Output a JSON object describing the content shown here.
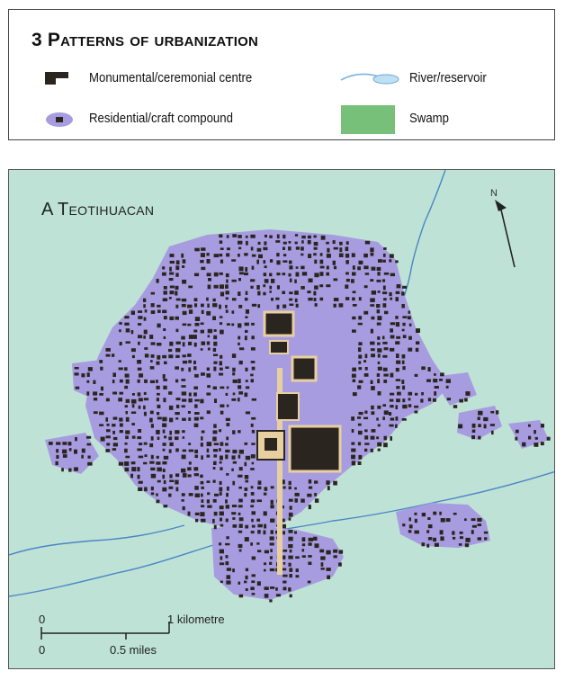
{
  "legend": {
    "title": "3 Patterns of urbanization",
    "items": [
      {
        "label": "Monumental/ceremonial centre",
        "icon": "monument-swatch-icon",
        "color": "#2b2520"
      },
      {
        "label": "River/reservoir",
        "icon": "river-swatch-icon",
        "color": "#7ab4e0"
      },
      {
        "label": "Residential/craft compound",
        "icon": "residential-swatch-icon",
        "color": "#a79ce0"
      },
      {
        "label": "Swamp",
        "icon": "swamp-swatch-icon",
        "color": "#76c07a"
      }
    ]
  },
  "map": {
    "title": "A Teotihuacan",
    "north_label": "N",
    "background_color": "#bfe2d6",
    "urban_color": "#a79ce0",
    "compound_color": "#2b2520",
    "river_color": "#4a86c5"
  },
  "scale": {
    "zero_top": "0",
    "km_label": "1 kilometre",
    "zero_bottom": "0",
    "miles_label": "0.5 miles"
  }
}
